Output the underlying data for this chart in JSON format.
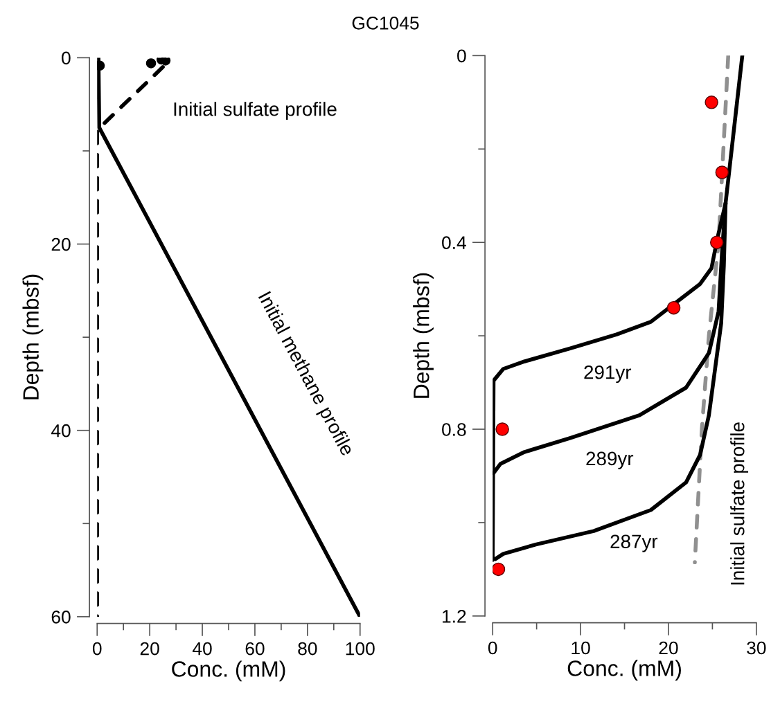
{
  "chart_data": [
    {
      "type": "line",
      "title": "GC1045",
      "xlabel": "Conc. (mM)",
      "ylabel": "Depth (mbsf)",
      "xlim": [
        0,
        100
      ],
      "xticks": [
        0,
        {
          "value": 10,
          "label": null
        },
        20,
        {
          "value": 30,
          "label": null
        },
        40,
        {
          "value": 50,
          "label": null
        },
        60,
        {
          "value": 70,
          "label": null
        },
        80,
        {
          "value": 90,
          "label": null
        },
        100
      ],
      "ylim": [
        60,
        0
      ],
      "yticks": [
        0,
        {
          "value": 10,
          "label": null
        },
        20,
        {
          "value": 30,
          "label": null
        },
        40,
        {
          "value": 50,
          "label": null
        },
        60
      ],
      "series": [
        {
          "color": "#000000",
          "line_style": "solid",
          "x": [
            0.5,
            0.8,
            100
          ],
          "values": [
            0,
            7.5,
            60
          ]
        },
        {
          "color": "#000000",
          "line_style": "dashed",
          "x": [
            25,
            1,
            0,
            0
          ],
          "values": [
            1,
            7.5,
            8,
            60
          ]
        },
        {
          "type": "scatter",
          "color": "#000000",
          "marker": "circle",
          "x": [
            1,
            20.5,
            24.5,
            26
          ],
          "values": [
            0.85,
            0.6,
            0.2,
            0.3
          ]
        }
      ],
      "annotations": [
        "Initial sulfate profile",
        "Initial methane profile"
      ]
    },
    {
      "type": "line",
      "xlabel": "Conc. (mM)",
      "ylabel": "Depth (mbsf)",
      "xlim": [
        0,
        30
      ],
      "xticks": [
        0,
        {
          "value": 5,
          "label": null
        },
        10,
        {
          "value": 15,
          "label": null
        },
        20,
        {
          "value": 25,
          "label": null
        },
        30
      ],
      "ylim": [
        1.2,
        0
      ],
      "yticks": [
        0,
        {
          "value": 0.2,
          "label": null
        },
        0.4,
        {
          "value": 0.6,
          "label": null
        },
        0.8,
        {
          "value": 1.0,
          "label": null
        },
        1.2
      ],
      "series": [
        {
          "color": "#909090",
          "line_style": "dashed",
          "x": [
            26.8,
            25.7,
            24.6,
            23.8,
            23.0
          ],
          "values": [
            0,
            0.4,
            0.6,
            0.8,
            1.085
          ]
        },
        {
          "color": "#000000",
          "line_style": "solid",
          "x": [
            28.4,
            26.5,
            25.5,
            24.9,
            23.6,
            18.0,
            14.1,
            8.8,
            3.6,
            1.2,
            0.1,
            0
          ],
          "values": [
            0,
            0.316,
            0.397,
            0.455,
            0.489,
            0.57,
            0.597,
            0.627,
            0.655,
            0.671,
            0.696,
            1.08
          ]
        },
        {
          "color": "#000000",
          "line_style": "solid",
          "x": [
            26.5,
            26.1,
            25.7,
            24.6,
            22.0,
            16.7,
            8.8,
            3.6,
            0.9,
            0.1
          ],
          "values": [
            0.316,
            0.42,
            0.548,
            0.637,
            0.711,
            0.77,
            0.819,
            0.849,
            0.874,
            0.894
          ]
        },
        {
          "color": "#000000",
          "line_style": "solid",
          "x": [
            26.5,
            26.3,
            26.0,
            24.6,
            23.6,
            22.0,
            18.0,
            11.5,
            4.9,
            1.2,
            0.3
          ],
          "values": [
            0.316,
            0.45,
            0.573,
            0.77,
            0.855,
            0.914,
            0.973,
            1.018,
            1.047,
            1.067,
            1.078
          ]
        },
        {
          "type": "scatter",
          "color": "#ff0000",
          "marker": "circle",
          "x": [
            24.9,
            26.1,
            25.5,
            20.6,
            1.1,
            0.65
          ],
          "values": [
            0.1,
            0.25,
            0.4,
            0.54,
            0.8,
            1.1
          ]
        }
      ],
      "annotations": [
        "291yr",
        "289yr",
        "287yr",
        "Initial sulfate profile"
      ]
    }
  ]
}
